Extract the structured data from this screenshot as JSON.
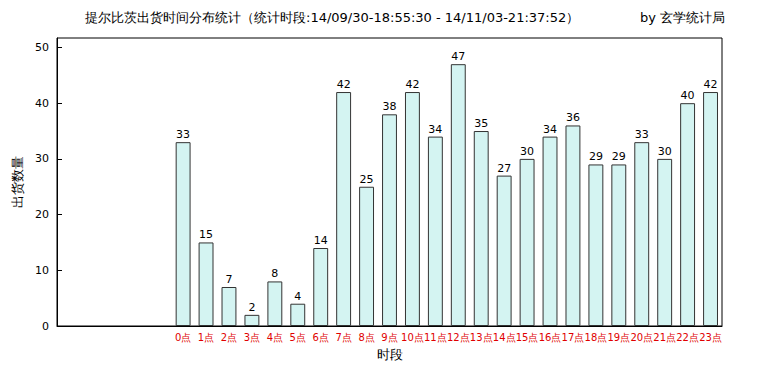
{
  "chart_data": {
    "type": "bar",
    "title": "提尔比茨出货时间分布统计（统计时段:14/09/30-18:55:30 - 14/11/03-21:37:52）",
    "subtitle": "by 玄学统计局",
    "x_label": "时段",
    "y_label": "出货数量",
    "categories": [
      null,
      null,
      null,
      null,
      null,
      "0点",
      "1点",
      "2点",
      "3点",
      "4点",
      "5点",
      "6点",
      "7点",
      "8点",
      "9点",
      "10点",
      "11点",
      "12点",
      "13点",
      "14点",
      "15点",
      "16点",
      "17点",
      "18点",
      "19点",
      "20点",
      "21点",
      "22点",
      "23点"
    ],
    "values": [
      null,
      null,
      null,
      null,
      null,
      33,
      15,
      7,
      2,
      8,
      4,
      14,
      42,
      25,
      38,
      42,
      34,
      47,
      35,
      27,
      30,
      34,
      36,
      29,
      29,
      33,
      30,
      40,
      42
    ],
    "color": "#d4f4f2",
    "ylim": [
      0,
      51.7
    ],
    "yticks": [
      0,
      10,
      20,
      30,
      40,
      50
    ],
    "data_labels": true,
    "grid": false
  }
}
